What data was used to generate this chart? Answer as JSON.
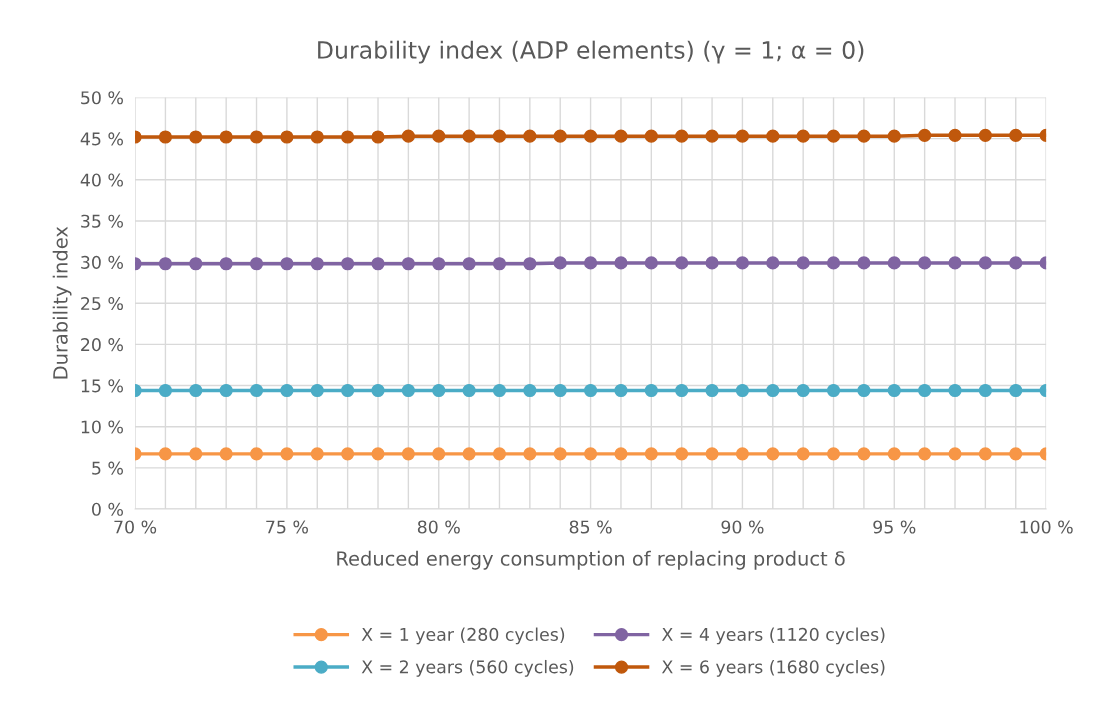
{
  "chart_data": {
    "type": "line",
    "title": "Durability index (ADP elements) (γ = 1; α = 0)",
    "xlabel": "Reduced energy consumption of replacing product δ",
    "ylabel": "Durability index",
    "x": [
      70,
      71,
      72,
      73,
      74,
      75,
      76,
      77,
      78,
      79,
      80,
      81,
      82,
      83,
      84,
      85,
      86,
      87,
      88,
      89,
      90,
      91,
      92,
      93,
      94,
      95,
      96,
      97,
      98,
      99,
      100
    ],
    "series": [
      {
        "name": "X = 1 year (280 cycles)",
        "color": "#f79646",
        "values": [
          6.7,
          6.7,
          6.7,
          6.7,
          6.7,
          6.7,
          6.7,
          6.7,
          6.7,
          6.7,
          6.7,
          6.7,
          6.7,
          6.7,
          6.7,
          6.7,
          6.7,
          6.7,
          6.7,
          6.7,
          6.7,
          6.7,
          6.7,
          6.7,
          6.7,
          6.7,
          6.7,
          6.7,
          6.7,
          6.7,
          6.7
        ]
      },
      {
        "name": "X = 2 years (560 cycles)",
        "color": "#4bacc6",
        "values": [
          14.4,
          14.4,
          14.4,
          14.4,
          14.4,
          14.4,
          14.4,
          14.4,
          14.4,
          14.4,
          14.4,
          14.4,
          14.4,
          14.4,
          14.4,
          14.4,
          14.4,
          14.4,
          14.4,
          14.4,
          14.4,
          14.4,
          14.4,
          14.4,
          14.4,
          14.4,
          14.4,
          14.4,
          14.4,
          14.4,
          14.4
        ]
      },
      {
        "name": "X = 4 years (1120 cycles)",
        "color": "#8064a2",
        "values": [
          29.8,
          29.8,
          29.8,
          29.8,
          29.8,
          29.8,
          29.8,
          29.8,
          29.8,
          29.8,
          29.8,
          29.8,
          29.8,
          29.8,
          29.9,
          29.9,
          29.9,
          29.9,
          29.9,
          29.9,
          29.9,
          29.9,
          29.9,
          29.9,
          29.9,
          29.9,
          29.9,
          29.9,
          29.9,
          29.9,
          29.9
        ]
      },
      {
        "name": "X = 6 years (1680 cycles)",
        "color": "#c0580c",
        "values": [
          45.2,
          45.2,
          45.2,
          45.2,
          45.2,
          45.2,
          45.2,
          45.2,
          45.2,
          45.3,
          45.3,
          45.3,
          45.3,
          45.3,
          45.3,
          45.3,
          45.3,
          45.3,
          45.3,
          45.3,
          45.3,
          45.3,
          45.3,
          45.3,
          45.3,
          45.3,
          45.4,
          45.4,
          45.4,
          45.4,
          45.4
        ]
      }
    ],
    "xlim": [
      70,
      100
    ],
    "xticks": [
      {
        "value": 70,
        "label": "70 %"
      },
      {
        "value": 71,
        "label": null
      },
      {
        "value": 72,
        "label": null
      },
      {
        "value": 73,
        "label": null
      },
      {
        "value": 74,
        "label": null
      },
      {
        "value": 75,
        "label": "75 %"
      },
      {
        "value": 76,
        "label": null
      },
      {
        "value": 77,
        "label": null
      },
      {
        "value": 78,
        "label": null
      },
      {
        "value": 79,
        "label": null
      },
      {
        "value": 80,
        "label": "80 %"
      },
      {
        "value": 81,
        "label": null
      },
      {
        "value": 82,
        "label": null
      },
      {
        "value": 83,
        "label": null
      },
      {
        "value": 84,
        "label": null
      },
      {
        "value": 85,
        "label": "85 %"
      },
      {
        "value": 86,
        "label": null
      },
      {
        "value": 87,
        "label": null
      },
      {
        "value": 88,
        "label": null
      },
      {
        "value": 89,
        "label": null
      },
      {
        "value": 90,
        "label": "90 %"
      },
      {
        "value": 91,
        "label": null
      },
      {
        "value": 92,
        "label": null
      },
      {
        "value": 93,
        "label": null
      },
      {
        "value": 94,
        "label": null
      },
      {
        "value": 95,
        "label": "95 %"
      },
      {
        "value": 96,
        "label": null
      },
      {
        "value": 97,
        "label": null
      },
      {
        "value": 98,
        "label": null
      },
      {
        "value": 99,
        "label": null
      },
      {
        "value": 100,
        "label": "100 %"
      }
    ],
    "ylim": [
      0,
      50
    ],
    "yticks": [
      {
        "value": 0,
        "label": "0 %"
      },
      {
        "value": 5,
        "label": "5 %"
      },
      {
        "value": 10,
        "label": "10 %"
      },
      {
        "value": 15,
        "label": "15 %"
      },
      {
        "value": 20,
        "label": "20 %"
      },
      {
        "value": 25,
        "label": "25 %"
      },
      {
        "value": 30,
        "label": "30 %"
      },
      {
        "value": 35,
        "label": "35 %"
      },
      {
        "value": 40,
        "label": "40 %"
      },
      {
        "value": 45,
        "label": "45 %"
      },
      {
        "value": 50,
        "label": "50 %"
      }
    ],
    "grid": true,
    "legend": "bottom",
    "marker": "circle",
    "line_style": "solid"
  }
}
